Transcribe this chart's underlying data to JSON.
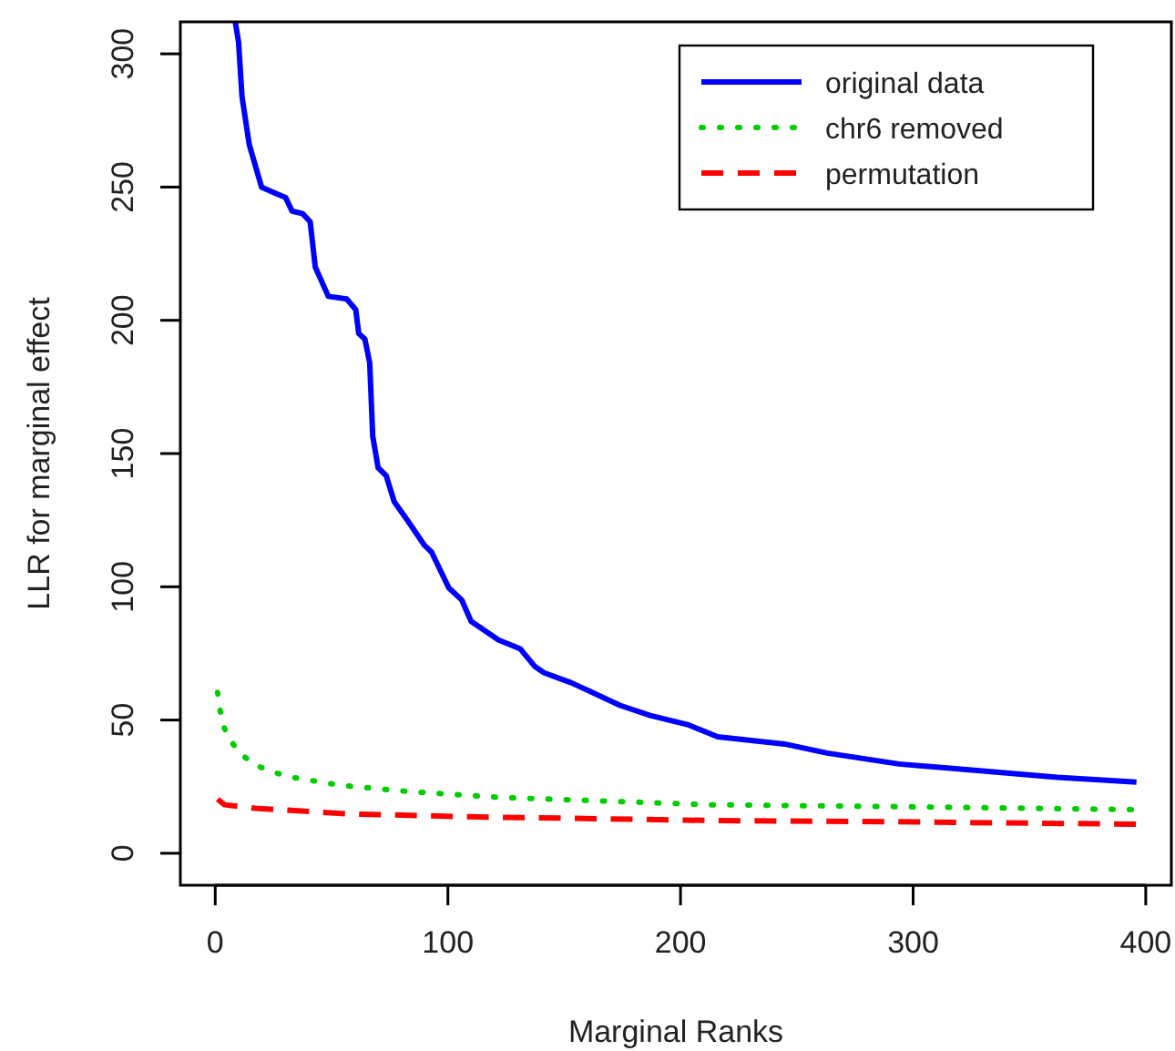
{
  "chart_data": {
    "type": "line",
    "xlabel": "Marginal Ranks",
    "ylabel": "LLR for marginal effect",
    "xlim": [
      -15,
      411
    ],
    "ylim": [
      -12,
      312
    ],
    "xticks": [
      0,
      100,
      200,
      300,
      400
    ],
    "yticks": [
      0,
      50,
      100,
      150,
      200,
      250,
      300
    ],
    "grid": false,
    "legend": "top right",
    "series": [
      {
        "name": "original data",
        "color": "#0000ff",
        "line_style": "solid",
        "x": [
          8.6,
          10,
          11.5,
          14.6,
          19.9,
          25,
          30.3,
          33,
          37.6,
          40.8,
          43,
          48.6,
          56.5,
          60.4,
          61.7,
          64.3,
          66.4,
          67.7,
          70,
          73.5,
          76.9,
          82.6,
          90,
          93,
          100.4,
          106,
          110,
          121.8,
          131,
          137.5,
          141.4,
          153,
          161,
          174,
          187,
          203,
          216,
          244.7,
          263,
          294,
          331,
          362,
          396
        ],
        "values": [
          312,
          304.6,
          284,
          266,
          250,
          248,
          246,
          241,
          240,
          237,
          220,
          209,
          208,
          204,
          195,
          193,
          184,
          156.5,
          144.7,
          141.7,
          132,
          125,
          115.5,
          113,
          99.6,
          95,
          87,
          80,
          76.8,
          70,
          67.7,
          64,
          60.8,
          55.5,
          51.7,
          48.3,
          43.7,
          41,
          37.6,
          33.5,
          30.8,
          28.5,
          26.7
        ]
      },
      {
        "name": "chr6 removed",
        "color": "#00cc00",
        "line_style": "dotted",
        "x": [
          1,
          2,
          3.6,
          6.8,
          11.5,
          17.3,
          30.3,
          53.9,
          82.6,
          121.8,
          213,
          294,
          394
        ],
        "values": [
          60.4,
          54,
          47.6,
          41.9,
          36.9,
          33,
          28.9,
          25.5,
          23.2,
          21,
          18.2,
          17.5,
          16.4
        ]
      },
      {
        "name": "permutation",
        "color": "#ff0000",
        "line_style": "dashed",
        "x": [
          1,
          4,
          17.3,
          56.5,
          109,
          213,
          294,
          396
        ],
        "values": [
          20.3,
          18.2,
          16.9,
          14.8,
          13.7,
          12.3,
          11.8,
          10.9
        ]
      }
    ]
  }
}
